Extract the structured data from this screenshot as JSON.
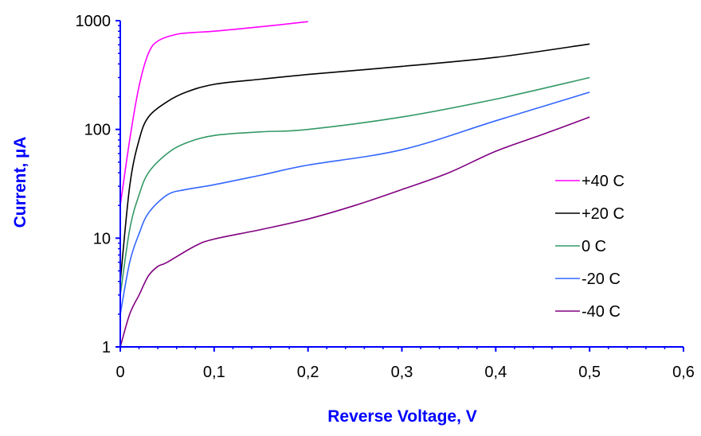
{
  "chart_data": {
    "type": "line",
    "title": "",
    "xlabel": "Reverse Voltage, V",
    "ylabel": "Current, µA",
    "xlim": [
      0,
      0.6
    ],
    "ylim": [
      1,
      1000
    ],
    "yscale": "log",
    "x_ticks": [
      "0",
      "0,1",
      "0,2",
      "0,3",
      "0,4",
      "0,5",
      "0,6"
    ],
    "y_ticks": [
      "1",
      "10",
      "100",
      "1000"
    ],
    "grid": false,
    "legend_position": "right",
    "series": [
      {
        "name": "+40 C",
        "color": "#ff00ff",
        "points": [
          [
            0,
            20
          ],
          [
            0.01,
            80
          ],
          [
            0.02,
            250
          ],
          [
            0.03,
            500
          ],
          [
            0.04,
            650
          ],
          [
            0.06,
            750
          ],
          [
            0.08,
            780
          ],
          [
            0.1,
            800
          ],
          [
            0.15,
            880
          ],
          [
            0.2,
            980
          ]
        ]
      },
      {
        "name": "+20 C",
        "color": "#000000",
        "points": [
          [
            0,
            4
          ],
          [
            0.01,
            30
          ],
          [
            0.02,
            80
          ],
          [
            0.03,
            130
          ],
          [
            0.05,
            180
          ],
          [
            0.07,
            220
          ],
          [
            0.1,
            260
          ],
          [
            0.15,
            290
          ],
          [
            0.2,
            320
          ],
          [
            0.3,
            380
          ],
          [
            0.4,
            460
          ],
          [
            0.5,
            610
          ]
        ]
      },
      {
        "name": "0 C",
        "color": "#339966",
        "points": [
          [
            0,
            3
          ],
          [
            0.01,
            12
          ],
          [
            0.02,
            25
          ],
          [
            0.03,
            40
          ],
          [
            0.05,
            60
          ],
          [
            0.07,
            75
          ],
          [
            0.1,
            88
          ],
          [
            0.15,
            95
          ],
          [
            0.2,
            100
          ],
          [
            0.3,
            130
          ],
          [
            0.4,
            190
          ],
          [
            0.5,
            300
          ]
        ]
      },
      {
        "name": "-20 C",
        "color": "#3366ff",
        "points": [
          [
            0,
            2
          ],
          [
            0.01,
            6
          ],
          [
            0.02,
            11
          ],
          [
            0.03,
            17
          ],
          [
            0.05,
            25
          ],
          [
            0.07,
            28
          ],
          [
            0.1,
            31
          ],
          [
            0.15,
            38
          ],
          [
            0.2,
            47
          ],
          [
            0.3,
            65
          ],
          [
            0.4,
            120
          ],
          [
            0.5,
            220
          ]
        ]
      },
      {
        "name": "-40 C",
        "color": "#800080",
        "points": [
          [
            0,
            1
          ],
          [
            0.01,
            2
          ],
          [
            0.02,
            3
          ],
          [
            0.03,
            4.5
          ],
          [
            0.04,
            5.5
          ],
          [
            0.05,
            6
          ],
          [
            0.08,
            8.5
          ],
          [
            0.1,
            9.8
          ],
          [
            0.15,
            12
          ],
          [
            0.2,
            15
          ],
          [
            0.25,
            20
          ],
          [
            0.3,
            28
          ],
          [
            0.35,
            40
          ],
          [
            0.4,
            63
          ],
          [
            0.45,
            90
          ],
          [
            0.5,
            130
          ]
        ]
      }
    ]
  }
}
